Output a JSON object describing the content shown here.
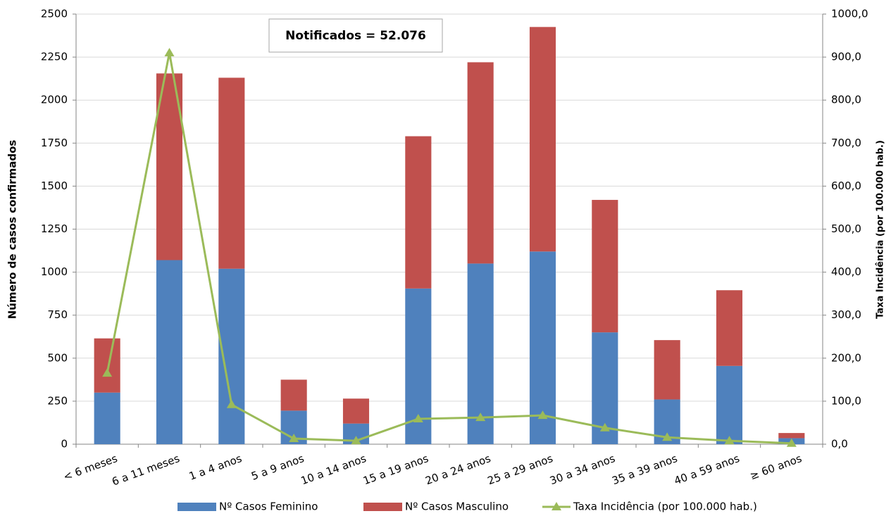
{
  "chart_data": {
    "type": "bar",
    "annotation": "Notificados = 52.076",
    "y_label": "Número de casos confirmados",
    "y2_label": "Taxa Incidência (por 100.000 hab.)",
    "categories": [
      "< 6 meses",
      "6 a 11 meses",
      "1 a 4  anos",
      "5 a 9 anos",
      "10 a 14 anos",
      "15 a 19 anos",
      "20 a 24 anos",
      "25 a 29 anos",
      "30 a 34 anos",
      "35 a 39 anos",
      "40 a 59 anos",
      "≥ 60 anos"
    ],
    "stacked": true,
    "grid": true,
    "legend": "bottom",
    "series": [
      {
        "name": "Nº Casos Feminino",
        "color": "#4f81bd",
        "values": [
          300,
          1070,
          1020,
          195,
          120,
          905,
          1050,
          1120,
          650,
          260,
          455,
          35
        ]
      },
      {
        "name": "Nº Casos Masculino",
        "color": "#c0504d",
        "values": [
          315,
          1085,
          1110,
          180,
          145,
          885,
          1170,
          1305,
          770,
          345,
          440,
          30
        ]
      },
      {
        "name": "Taxa Incidência (por 100.000 hab.)",
        "color": "#9bbb59",
        "type": "line",
        "axis": "y2",
        "marker": "triangle",
        "values": [
          165,
          910,
          92,
          13,
          8,
          59,
          62,
          67,
          38,
          16,
          8,
          2
        ]
      }
    ],
    "ylim": [
      0,
      2500
    ],
    "yticks": [
      0,
      250,
      500,
      750,
      1000,
      1250,
      1500,
      1750,
      2000,
      2250,
      2500
    ],
    "y2lim": [
      0,
      1000
    ],
    "y2ticks": [
      {
        "value": 0,
        "label": "0,0"
      },
      {
        "value": 100,
        "label": "100,0"
      },
      {
        "value": 200,
        "label": "200,0"
      },
      {
        "value": 300,
        "label": "300,0"
      },
      {
        "value": 400,
        "label": "400,0"
      },
      {
        "value": 500,
        "label": "500,0"
      },
      {
        "value": 600,
        "label": "600,0"
      },
      {
        "value": 700,
        "label": "700,0"
      },
      {
        "value": 800,
        "label": "800,0"
      },
      {
        "value": 900,
        "label": "900,0"
      },
      {
        "value": 1000,
        "label": "1000,0"
      }
    ]
  }
}
